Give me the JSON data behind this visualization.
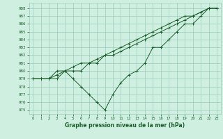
{
  "xlabel": "Graphe pression niveau de la mer (hPa)",
  "bg_color": "#cff0e0",
  "grid_color": "#99ccbb",
  "line_color": "#1a5c2a",
  "ylim": [
    974.5,
    988.7
  ],
  "xlim": [
    -0.5,
    23.5
  ],
  "yticks": [
    975,
    976,
    977,
    978,
    979,
    980,
    981,
    982,
    983,
    984,
    985,
    986,
    987,
    988
  ],
  "xticks": [
    0,
    1,
    2,
    3,
    4,
    5,
    6,
    7,
    8,
    9,
    10,
    11,
    12,
    13,
    14,
    15,
    16,
    17,
    18,
    19,
    20,
    21,
    22,
    23
  ],
  "line1": {
    "x": [
      0,
      1,
      2,
      3,
      4,
      5,
      6,
      7,
      8,
      9,
      10,
      11,
      12,
      13,
      14,
      15,
      16,
      17,
      18,
      19,
      20,
      21,
      22,
      23
    ],
    "y": [
      979,
      979,
      979,
      979,
      980,
      979,
      978,
      977,
      976,
      975,
      977,
      978.5,
      979.5,
      980,
      981,
      983,
      983,
      984,
      985,
      986,
      986,
      987,
      988,
      988
    ]
  },
  "line2": {
    "x": [
      0,
      1,
      2,
      3,
      4,
      5,
      6,
      7,
      8,
      9,
      10,
      11,
      12,
      13,
      14,
      15,
      16,
      17,
      18,
      19,
      20,
      21,
      22,
      23
    ],
    "y": [
      979,
      979,
      979,
      980,
      980,
      980,
      980,
      981,
      981,
      982,
      982,
      982.5,
      983,
      983.5,
      984,
      984.5,
      985,
      985.5,
      986,
      986.5,
      987,
      987.5,
      988,
      988
    ]
  },
  "line3": {
    "x": [
      0,
      1,
      2,
      3,
      4,
      5,
      6,
      7,
      8,
      9,
      10,
      11,
      12,
      13,
      14,
      15,
      16,
      17,
      18,
      19,
      20,
      21,
      22,
      23
    ],
    "y": [
      979,
      979,
      979,
      979.5,
      980,
      980.5,
      981,
      981,
      981.5,
      982,
      982.5,
      983,
      983.5,
      984,
      984.5,
      985,
      985.5,
      986,
      986.5,
      987,
      987,
      987.5,
      988,
      988
    ]
  }
}
